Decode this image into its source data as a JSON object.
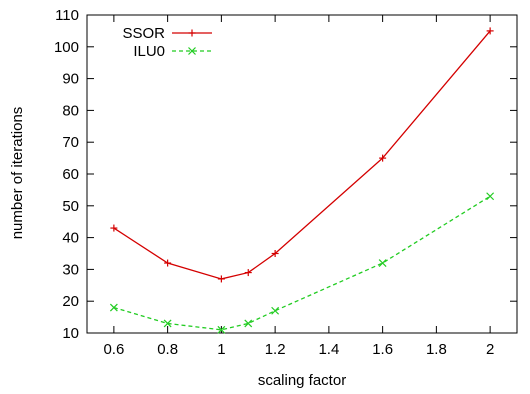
{
  "chart_data": {
    "type": "line",
    "xlabel": "scaling factor",
    "ylabel": "number of iterations",
    "xlim": [
      0.5,
      2.1
    ],
    "ylim": [
      10,
      110
    ],
    "xticks": [
      0.6,
      0.8,
      1,
      1.2,
      1.4,
      1.6,
      1.8,
      2
    ],
    "xtick_labels": [
      "0.6",
      "0.8",
      "1",
      "1.2",
      "1.4",
      "1.6",
      "1.8",
      "2"
    ],
    "yticks": [
      10,
      20,
      30,
      40,
      50,
      60,
      70,
      80,
      90,
      100,
      110
    ],
    "ytick_labels": [
      "10",
      "20",
      "30",
      "40",
      "50",
      "60",
      "70",
      "80",
      "90",
      "100",
      "110"
    ],
    "grid": false,
    "legend_position": "top-left",
    "series": [
      {
        "name": "SSOR",
        "color": "#d40000",
        "marker": "plus",
        "dash": "solid",
        "x": [
          0.6,
          0.8,
          1.0,
          1.1,
          1.2,
          1.6,
          2.0
        ],
        "y": [
          43,
          32,
          27,
          29,
          35,
          65,
          105
        ]
      },
      {
        "name": "ILU0",
        "color": "#22cc22",
        "marker": "cross",
        "dash": "dashed",
        "x": [
          0.6,
          0.8,
          1.0,
          1.1,
          1.2,
          1.6,
          2.0
        ],
        "y": [
          18,
          13,
          11,
          13,
          17,
          32,
          53
        ]
      }
    ]
  }
}
